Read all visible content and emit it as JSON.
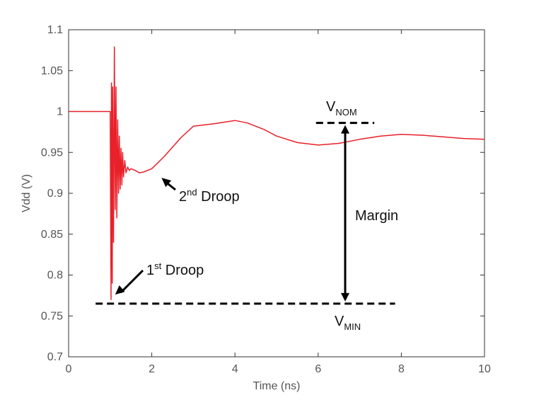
{
  "chart_data": {
    "type": "line",
    "xlabel": "Time (ns)",
    "ylabel": "Vdd (V)",
    "xlim": [
      0,
      10
    ],
    "ylim": [
      0.7,
      1.1
    ],
    "x_ticks": [
      0,
      2,
      4,
      6,
      8,
      10
    ],
    "y_ticks": [
      0.7,
      0.75,
      0.8,
      0.85,
      0.9,
      0.95,
      1,
      1.05,
      1.1
    ],
    "x_tick_labels": [
      "0",
      "2",
      "4",
      "6",
      "8",
      "10"
    ],
    "y_tick_labels": [
      "0.7",
      "0.75",
      "0.8",
      "0.85",
      "0.9",
      "0.95",
      "1",
      "1.05",
      "1.1"
    ],
    "grid": false,
    "series_color": "#e8202a",
    "series": [
      {
        "x": [
          0,
          0.95,
          1.0,
          1.02,
          1.03,
          1.05,
          1.06,
          1.08,
          1.1,
          1.12,
          1.14,
          1.16,
          1.18,
          1.2,
          1.22,
          1.24,
          1.26,
          1.28,
          1.3,
          1.32,
          1.35,
          1.38,
          1.42,
          1.46,
          1.5,
          1.6,
          1.7,
          1.8,
          2.0,
          2.3,
          2.7,
          3.0,
          3.5,
          4.0,
          4.3,
          4.7,
          5.0,
          5.5,
          6.0,
          6.5,
          7.0,
          7.5,
          8.0,
          8.5,
          9.0,
          9.5,
          10.0
        ],
        "y": [
          1.0,
          1.0,
          1.0,
          0.77,
          1.035,
          0.79,
          1.03,
          0.84,
          1.079,
          0.88,
          1.03,
          0.87,
          0.99,
          0.9,
          0.97,
          0.905,
          0.955,
          0.91,
          0.95,
          0.92,
          0.94,
          0.925,
          0.932,
          0.928,
          0.93,
          0.928,
          0.925,
          0.926,
          0.93,
          0.945,
          0.968,
          0.982,
          0.985,
          0.989,
          0.986,
          0.978,
          0.97,
          0.962,
          0.959,
          0.961,
          0.966,
          0.97,
          0.972,
          0.971,
          0.969,
          0.967,
          0.966
        ]
      }
    ],
    "annotations": {
      "first_droop": {
        "sup": "st",
        "text": " Droop",
        "number": "1",
        "target": [
          1.0,
          0.77
        ]
      },
      "second_droop": {
        "sup": "nd",
        "text": " Droop",
        "number": "2",
        "target": [
          2.2,
          0.925
        ]
      },
      "margin": {
        "text": "Margin"
      },
      "vnom": {
        "main": "V",
        "sub": "NOM",
        "level": 0.986,
        "x_range": [
          5.95,
          7.35
        ]
      },
      "vmin": {
        "main": "V",
        "sub": "MIN",
        "level": 0.765,
        "x_range": [
          0.65,
          7.85
        ]
      },
      "margin_arrow_x": 6.65
    }
  }
}
